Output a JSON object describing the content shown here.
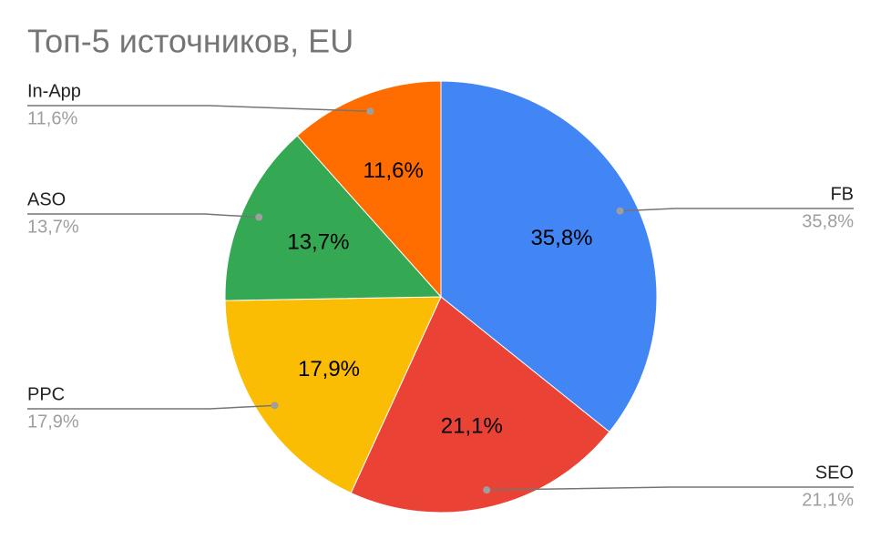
{
  "chart_data": {
    "type": "pie",
    "title": "Топ-5 источников, EU",
    "categories": [
      "FB",
      "SEO",
      "PPC",
      "ASO",
      "In-App"
    ],
    "values": [
      35.8,
      21.1,
      17.9,
      13.7,
      11.6
    ],
    "value_labels": [
      "35,8%",
      "21,1%",
      "17,9%",
      "13,7%",
      "11,6%"
    ],
    "colors": [
      "#4285f4",
      "#ea4335",
      "#fbbc04",
      "#34a853",
      "#ff6d01"
    ]
  }
}
